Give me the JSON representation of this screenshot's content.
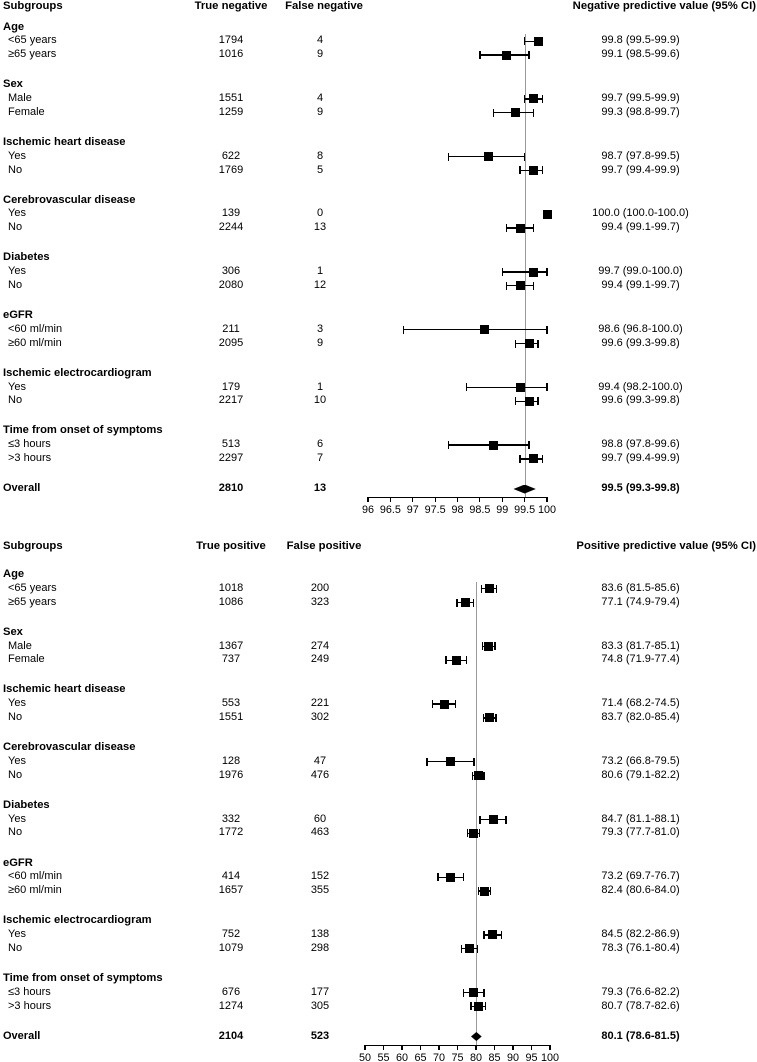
{
  "figure": {
    "background": "#ffffff",
    "text_color": "#000000",
    "marker_color": "#000000",
    "reference_line_color": "#9a9a9a"
  },
  "chart_data": [
    {
      "type": "forest",
      "header": {
        "subgroups": "Subgroups",
        "col1": "True negative",
        "col2": "False negative",
        "value": "Negative predictive value (95% CI)"
      },
      "axis": {
        "min": 96,
        "max": 100,
        "ticks": [
          96,
          96.5,
          97,
          97.5,
          98,
          98.5,
          99,
          99.5,
          100
        ],
        "tick_labels": [
          "96",
          "96.5",
          "97",
          "97.5",
          "98",
          "98.5",
          "99",
          "99.5",
          "100"
        ]
      },
      "reference_value": 99.5,
      "groups": [
        {
          "name": "Age",
          "rows": [
            {
              "label": "<65 years",
              "n1": "1794",
              "n2": "4",
              "est": 99.8,
              "lo": 99.5,
              "hi": 99.9,
              "text": "99.8 (99.5-99.9)"
            },
            {
              "label": "≥65 years",
              "n1": "1016",
              "n2": "9",
              "est": 99.1,
              "lo": 98.5,
              "hi": 99.6,
              "text": "99.1 (98.5-99.6)"
            }
          ]
        },
        {
          "name": "Sex",
          "rows": [
            {
              "label": "Male",
              "n1": "1551",
              "n2": "4",
              "est": 99.7,
              "lo": 99.5,
              "hi": 99.9,
              "text": "99.7 (99.5-99.9)"
            },
            {
              "label": "Female",
              "n1": "1259",
              "n2": "9",
              "est": 99.3,
              "lo": 98.8,
              "hi": 99.7,
              "text": "99.3 (98.8-99.7)"
            }
          ]
        },
        {
          "name": "Ischemic heart disease",
          "rows": [
            {
              "label": "Yes",
              "n1": "622",
              "n2": "8",
              "est": 98.7,
              "lo": 97.8,
              "hi": 99.5,
              "text": "98.7 (97.8-99.5)"
            },
            {
              "label": "No",
              "n1": "1769",
              "n2": "5",
              "est": 99.7,
              "lo": 99.4,
              "hi": 99.9,
              "text": "99.7 (99.4-99.9)"
            }
          ]
        },
        {
          "name": "Cerebrovascular disease",
          "rows": [
            {
              "label": "Yes",
              "n1": "139",
              "n2": "0",
              "est": 100.0,
              "lo": 100.0,
              "hi": 100.0,
              "text": "100.0 (100.0-100.0)"
            },
            {
              "label": "No",
              "n1": "2244",
              "n2": "13",
              "est": 99.4,
              "lo": 99.1,
              "hi": 99.7,
              "text": "99.4 (99.1-99.7)"
            }
          ]
        },
        {
          "name": "Diabetes",
          "rows": [
            {
              "label": "Yes",
              "n1": "306",
              "n2": "1",
              "est": 99.7,
              "lo": 99.0,
              "hi": 100.0,
              "text": "99.7 (99.0-100.0)"
            },
            {
              "label": "No",
              "n1": "2080",
              "n2": "12",
              "est": 99.4,
              "lo": 99.1,
              "hi": 99.7,
              "text": "99.4 (99.1-99.7)"
            }
          ]
        },
        {
          "name": "eGFR",
          "rows": [
            {
              "label": "<60 ml/min",
              "n1": "211",
              "n2": "3",
              "est": 98.6,
              "lo": 96.8,
              "hi": 100.0,
              "text": "98.6 (96.8-100.0)"
            },
            {
              "label": "≥60 ml/min",
              "n1": "2095",
              "n2": "9",
              "est": 99.6,
              "lo": 99.3,
              "hi": 99.8,
              "text": "99.6 (99.3-99.8)"
            }
          ]
        },
        {
          "name": "Ischemic electrocardiogram",
          "rows": [
            {
              "label": "Yes",
              "n1": "179",
              "n2": "1",
              "est": 99.4,
              "lo": 98.2,
              "hi": 100.0,
              "text": "99.4 (98.2-100.0)"
            },
            {
              "label": "No",
              "n1": "2217",
              "n2": "10",
              "est": 99.6,
              "lo": 99.3,
              "hi": 99.8,
              "text": "99.6 (99.3-99.8)"
            }
          ]
        },
        {
          "name": "Time from onset of symptoms",
          "rows": [
            {
              "label": "≤3 hours",
              "n1": "513",
              "n2": "6",
              "est": 98.8,
              "lo": 97.8,
              "hi": 99.6,
              "text": "98.8 (97.8-99.6)"
            },
            {
              "label": ">3 hours",
              "n1": "2297",
              "n2": "7",
              "est": 99.7,
              "lo": 99.4,
              "hi": 99.9,
              "text": "99.7 (99.4-99.9)"
            }
          ]
        }
      ],
      "overall": {
        "label": "Overall",
        "n1": "2810",
        "n2": "13",
        "est": 99.5,
        "lo": 99.3,
        "hi": 99.8,
        "text": "99.5 (99.3-99.8)"
      }
    },
    {
      "type": "forest",
      "header": {
        "subgroups": "Subgroups",
        "col1": "True positive",
        "col2": "False positive",
        "value": "Positive predictive value (95% CI)"
      },
      "axis": {
        "min": 50,
        "max": 100,
        "ticks": [
          50,
          55,
          60,
          65,
          70,
          75,
          80,
          85,
          90,
          95,
          100
        ],
        "tick_labels": [
          "50",
          "55",
          "60",
          "65",
          "70",
          "75",
          "80",
          "85",
          "90",
          "95",
          "100"
        ]
      },
      "reference_value": 80.1,
      "groups": [
        {
          "name": "Age",
          "rows": [
            {
              "label": "<65 years",
              "n1": "1018",
              "n2": "200",
              "est": 83.6,
              "lo": 81.5,
              "hi": 85.6,
              "text": "83.6 (81.5-85.6)"
            },
            {
              "label": "≥65 years",
              "n1": "1086",
              "n2": "323",
              "est": 77.1,
              "lo": 74.9,
              "hi": 79.4,
              "text": "77.1 (74.9-79.4)"
            }
          ]
        },
        {
          "name": "Sex",
          "rows": [
            {
              "label": "Male",
              "n1": "1367",
              "n2": "274",
              "est": 83.3,
              "lo": 81.7,
              "hi": 85.1,
              "text": "83.3 (81.7-85.1)"
            },
            {
              "label": "Female",
              "n1": "737",
              "n2": "249",
              "est": 74.8,
              "lo": 71.9,
              "hi": 77.4,
              "text": "74.8 (71.9-77.4)"
            }
          ]
        },
        {
          "name": "Ischemic heart disease",
          "rows": [
            {
              "label": "Yes",
              "n1": "553",
              "n2": "221",
              "est": 71.4,
              "lo": 68.2,
              "hi": 74.5,
              "text": "71.4 (68.2-74.5)"
            },
            {
              "label": "No",
              "n1": "1551",
              "n2": "302",
              "est": 83.7,
              "lo": 82.0,
              "hi": 85.4,
              "text": "83.7 (82.0-85.4)"
            }
          ]
        },
        {
          "name": "Cerebrovascular disease",
          "rows": [
            {
              "label": "Yes",
              "n1": "128",
              "n2": "47",
              "est": 73.2,
              "lo": 66.8,
              "hi": 79.5,
              "text": "73.2 (66.8-79.5)"
            },
            {
              "label": "No",
              "n1": "1976",
              "n2": "476",
              "est": 80.6,
              "lo": 79.1,
              "hi": 82.2,
              "text": "80.6 (79.1-82.2)"
            }
          ]
        },
        {
          "name": "Diabetes",
          "rows": [
            {
              "label": "Yes",
              "n1": "332",
              "n2": "60",
              "est": 84.7,
              "lo": 81.1,
              "hi": 88.1,
              "text": "84.7 (81.1-88.1)"
            },
            {
              "label": "No",
              "n1": "1772",
              "n2": "463",
              "est": 79.3,
              "lo": 77.7,
              "hi": 81.0,
              "text": "79.3 (77.7-81.0)"
            }
          ]
        },
        {
          "name": "eGFR",
          "rows": [
            {
              "label": "<60 ml/min",
              "n1": "414",
              "n2": "152",
              "est": 73.2,
              "lo": 69.7,
              "hi": 76.7,
              "text": "73.2 (69.7-76.7)"
            },
            {
              "label": "≥60 ml/min",
              "n1": "1657",
              "n2": "355",
              "est": 82.4,
              "lo": 80.6,
              "hi": 84.0,
              "text": "82.4 (80.6-84.0)"
            }
          ]
        },
        {
          "name": "Ischemic electrocardiogram",
          "rows": [
            {
              "label": "Yes",
              "n1": "752",
              "n2": "138",
              "est": 84.5,
              "lo": 82.2,
              "hi": 86.9,
              "text": "84.5 (82.2-86.9)"
            },
            {
              "label": "No",
              "n1": "1079",
              "n2": "298",
              "est": 78.3,
              "lo": 76.1,
              "hi": 80.4,
              "text": "78.3 (76.1-80.4)"
            }
          ]
        },
        {
          "name": "Time from onset of symptoms",
          "rows": [
            {
              "label": "≤3 hours",
              "n1": "676",
              "n2": "177",
              "est": 79.3,
              "lo": 76.6,
              "hi": 82.2,
              "text": "79.3 (76.6-82.2)"
            },
            {
              "label": ">3 hours",
              "n1": "1274",
              "n2": "305",
              "est": 80.7,
              "lo": 78.7,
              "hi": 82.6,
              "text": "80.7 (78.7-82.6)"
            }
          ]
        }
      ],
      "overall": {
        "label": "Overall",
        "n1": "2104",
        "n2": "523",
        "est": 80.1,
        "lo": 78.6,
        "hi": 81.5,
        "text": "80.1 (78.6-81.5)"
      }
    }
  ]
}
